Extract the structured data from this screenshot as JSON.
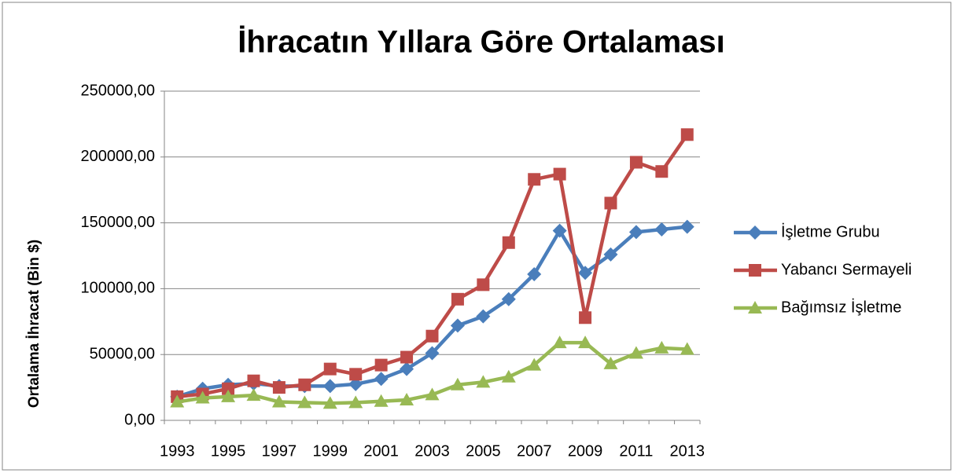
{
  "chart_data": {
    "type": "line",
    "title": "İhracatın Yıllara Göre Ortalaması",
    "y_label": "Ortalama İhracat (Bin $)",
    "categories": [
      "1993",
      null,
      "1995",
      null,
      "1997",
      null,
      "1999",
      null,
      "2001",
      null,
      "2003",
      null,
      "2005",
      null,
      "2007",
      null,
      "2009",
      null,
      "2011",
      null,
      "2013"
    ],
    "series": [
      {
        "name": "İşletme Grubu",
        "color": "#4a7ebb",
        "marker": "diamond",
        "values": [
          18000,
          24000,
          27000,
          28000,
          26000,
          26000,
          26000,
          27500,
          31500,
          39000,
          51000,
          72000,
          79000,
          92000,
          111000,
          144000,
          112000,
          126000,
          143000,
          145000,
          147000
        ]
      },
      {
        "name": "Yabancı Sermayeli",
        "color": "#be4b48",
        "marker": "square",
        "values": [
          18000,
          20000,
          24000,
          30000,
          25000,
          27000,
          39000,
          35000,
          42000,
          48000,
          64000,
          92000,
          103000,
          135000,
          183000,
          187000,
          78000,
          165000,
          196000,
          189000,
          217000
        ]
      },
      {
        "name": "Bağımsız İşletme",
        "color": "#98b954",
        "marker": "triangle",
        "values": [
          14000,
          17000,
          18000,
          19000,
          14000,
          13500,
          13000,
          13500,
          14500,
          15500,
          19500,
          27000,
          29000,
          33000,
          42000,
          59000,
          59000,
          43000,
          51000,
          55000,
          54000
        ]
      }
    ],
    "ylim": [
      0,
      250000
    ],
    "yticks": [
      {
        "value": 0,
        "label": "0,00"
      },
      {
        "value": 50000,
        "label": "50000,00"
      },
      {
        "value": 100000,
        "label": "100000,00"
      },
      {
        "value": 150000,
        "label": "150000,00"
      },
      {
        "value": 200000,
        "label": "200000,00"
      },
      {
        "value": 250000,
        "label": "250000,00"
      }
    ],
    "grid": true,
    "legend": "right"
  }
}
